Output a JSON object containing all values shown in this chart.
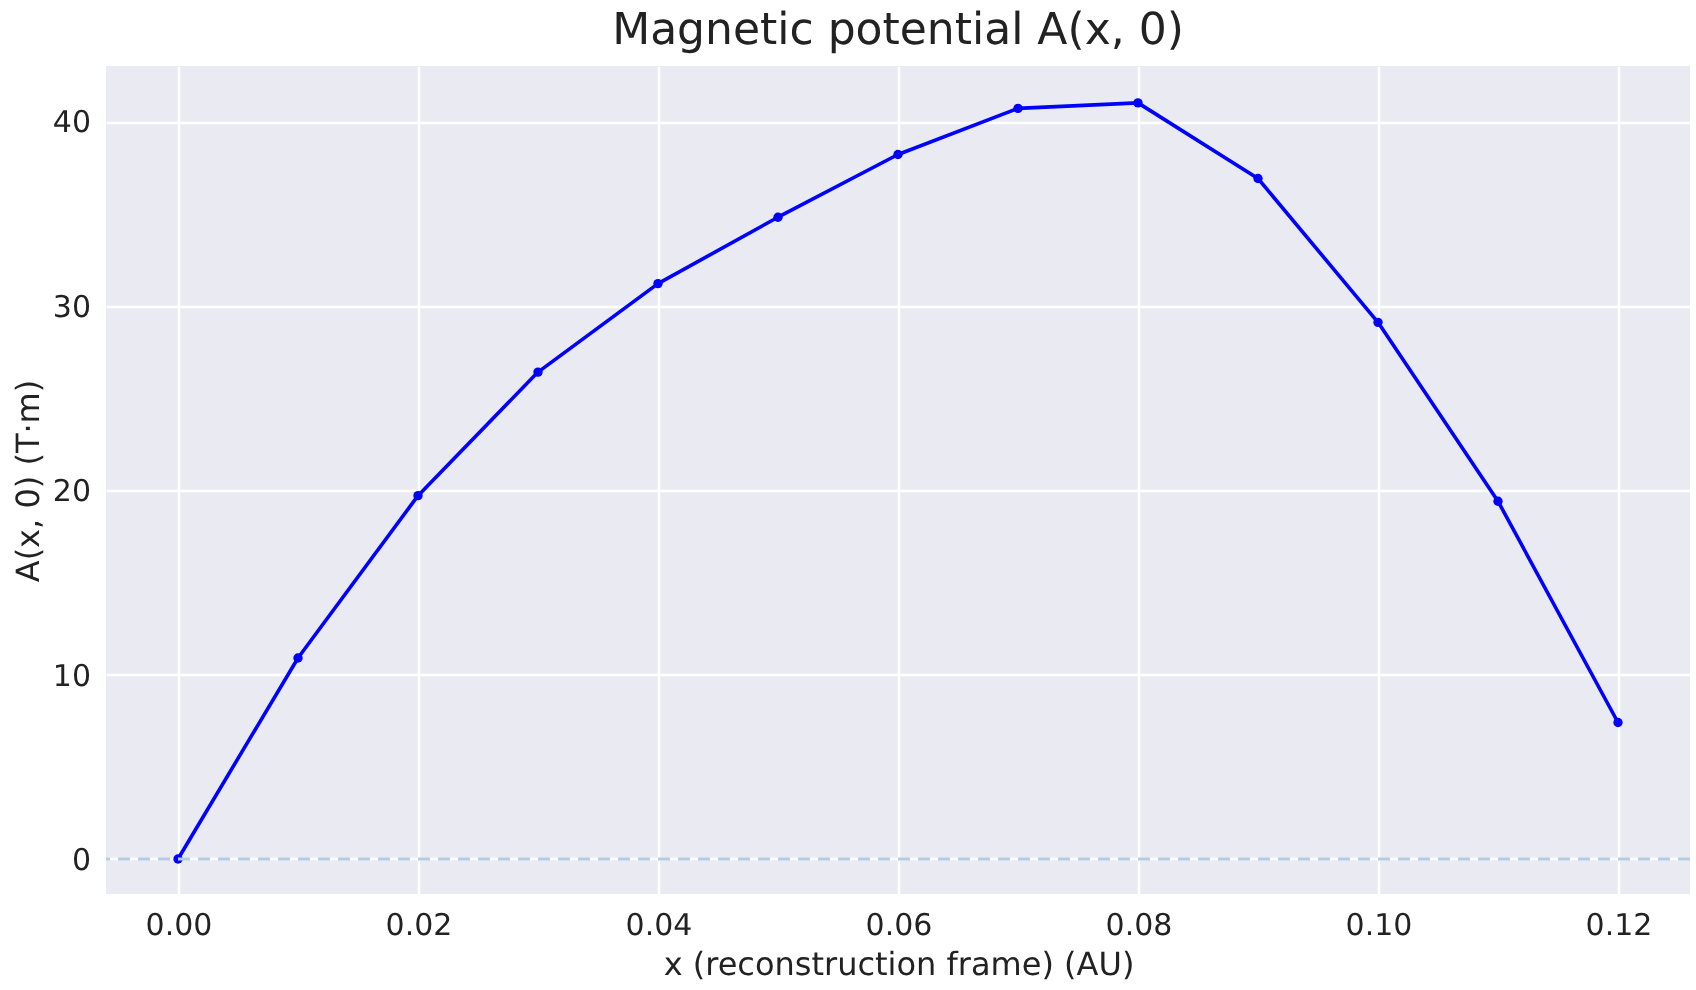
{
  "chart_data": {
    "type": "line",
    "title": "Magnetic potential A(x, 0)",
    "xlabel": "x (reconstruction frame) (AU)",
    "ylabel": "A(x, 0) (T·m)",
    "x": [
      0.0,
      0.01,
      0.02,
      0.03,
      0.04,
      0.05,
      0.06,
      0.07,
      0.08,
      0.09,
      0.1,
      0.11,
      0.12
    ],
    "series": [
      {
        "color": "#0000ff",
        "values": [
          0,
          10.9,
          19.7,
          26.4,
          31.2,
          34.8,
          38.2,
          40.7,
          41.0,
          36.9,
          29.1,
          19.4,
          7.4
        ]
      }
    ],
    "xlim": [
      -0.006,
      0.126
    ],
    "ylim": [
      -1.9,
      43.0
    ],
    "xticks": [
      {
        "value": 0,
        "label": "0.00"
      },
      {
        "value": 0.02,
        "label": "0.02"
      },
      {
        "value": 0.04,
        "label": "0.04"
      },
      {
        "value": 0.06,
        "label": "0.06"
      },
      {
        "value": 0.08,
        "label": "0.08"
      },
      {
        "value": 0.1,
        "label": "0.10"
      },
      {
        "value": 0.12,
        "label": "0.12"
      }
    ],
    "yticks": [
      0,
      10,
      20,
      30,
      40
    ],
    "ref_lines": [
      {
        "axis": "y",
        "value": 0,
        "color": "#b3cde3",
        "line_style": "dashed"
      }
    ],
    "grid": true,
    "marker": "circle",
    "line_style": "solid"
  }
}
